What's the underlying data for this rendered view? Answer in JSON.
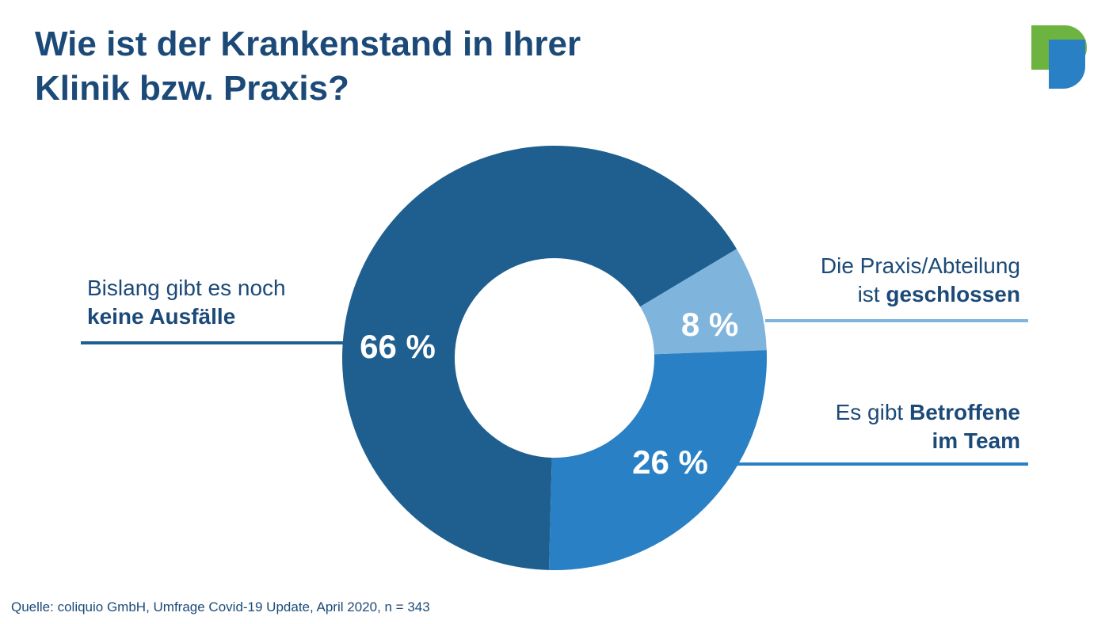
{
  "title": "Wie ist der Krankenstand in Ihrer Klinik bzw. Praxis?",
  "source": "Quelle: coliquio GmbH, Umfrage Covid-19 Update, April 2020, n = 343",
  "colors": {
    "dark_blue": "#1f5f8f",
    "mid_blue": "#2a80c4",
    "light_blue": "#7fb4dd",
    "text": "#1c4a78",
    "logo_green": "#6db33f",
    "logo_blue": "#2a80c4"
  },
  "labels": {
    "keine_line1": "Bislang gibt es noch",
    "keine_line2": "keine Ausfälle",
    "geschlossen_line1": "Die Praxis/Abteilung",
    "geschlossen_line2_prefix": "ist ",
    "geschlossen_line2_bold": "geschlossen",
    "betroffene_line1_prefix": "Es gibt ",
    "betroffene_line1_bold": "Betroffene",
    "betroffene_line2": "im Team"
  },
  "chart_data": {
    "type": "pie",
    "title": "Wie ist der Krankenstand in Ihrer Klinik bzw. Praxis?",
    "categories": [
      "Bislang gibt es noch keine Ausfälle",
      "Die Praxis/Abteilung ist geschlossen",
      "Es gibt Betroffene im Team"
    ],
    "values": [
      66,
      8,
      26
    ],
    "value_labels": [
      "66 %",
      "8 %",
      "26 %"
    ],
    "colors": [
      "#1f5f8f",
      "#7fb4dd",
      "#2a80c4"
    ],
    "donut": true
  }
}
